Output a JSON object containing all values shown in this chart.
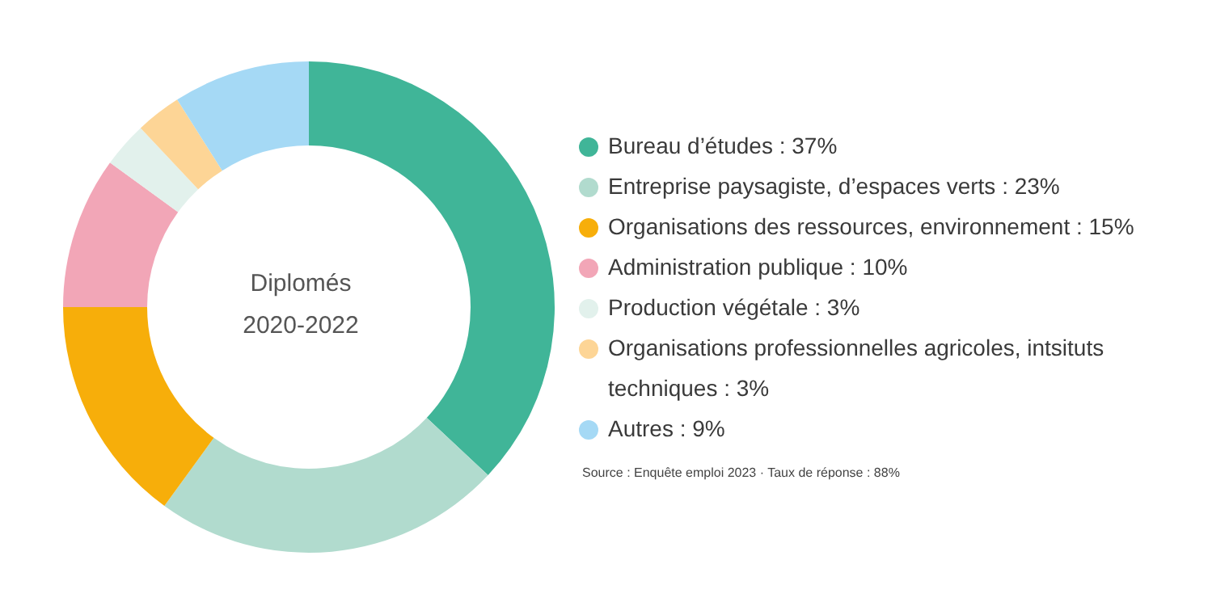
{
  "chart_data": {
    "type": "donut",
    "title": "Diplomés",
    "subtitle": "2020-2022",
    "categories": [
      "Bureau d’études : 37%",
      "Entreprise paysagiste, d’espaces verts : 23%",
      "Organisations des ressources, environnement : 15%",
      "Administration publique : 10%",
      "Production végétale : 3%",
      "Organisations professionnelles agricoles, intsituts techniques : 3%",
      "Autres : 9%"
    ],
    "values": [
      37,
      23,
      15,
      10,
      3,
      3,
      9
    ],
    "colors": [
      "#40b598",
      "#b1dbce",
      "#f7ae0a",
      "#f2a6b7",
      "#e2f1ec",
      "#fdd596",
      "#a5d9f5"
    ],
    "legend": "right",
    "annotations": [
      "Source : Enquête emploi 2023 · Taux de réponse : 88%"
    ]
  }
}
